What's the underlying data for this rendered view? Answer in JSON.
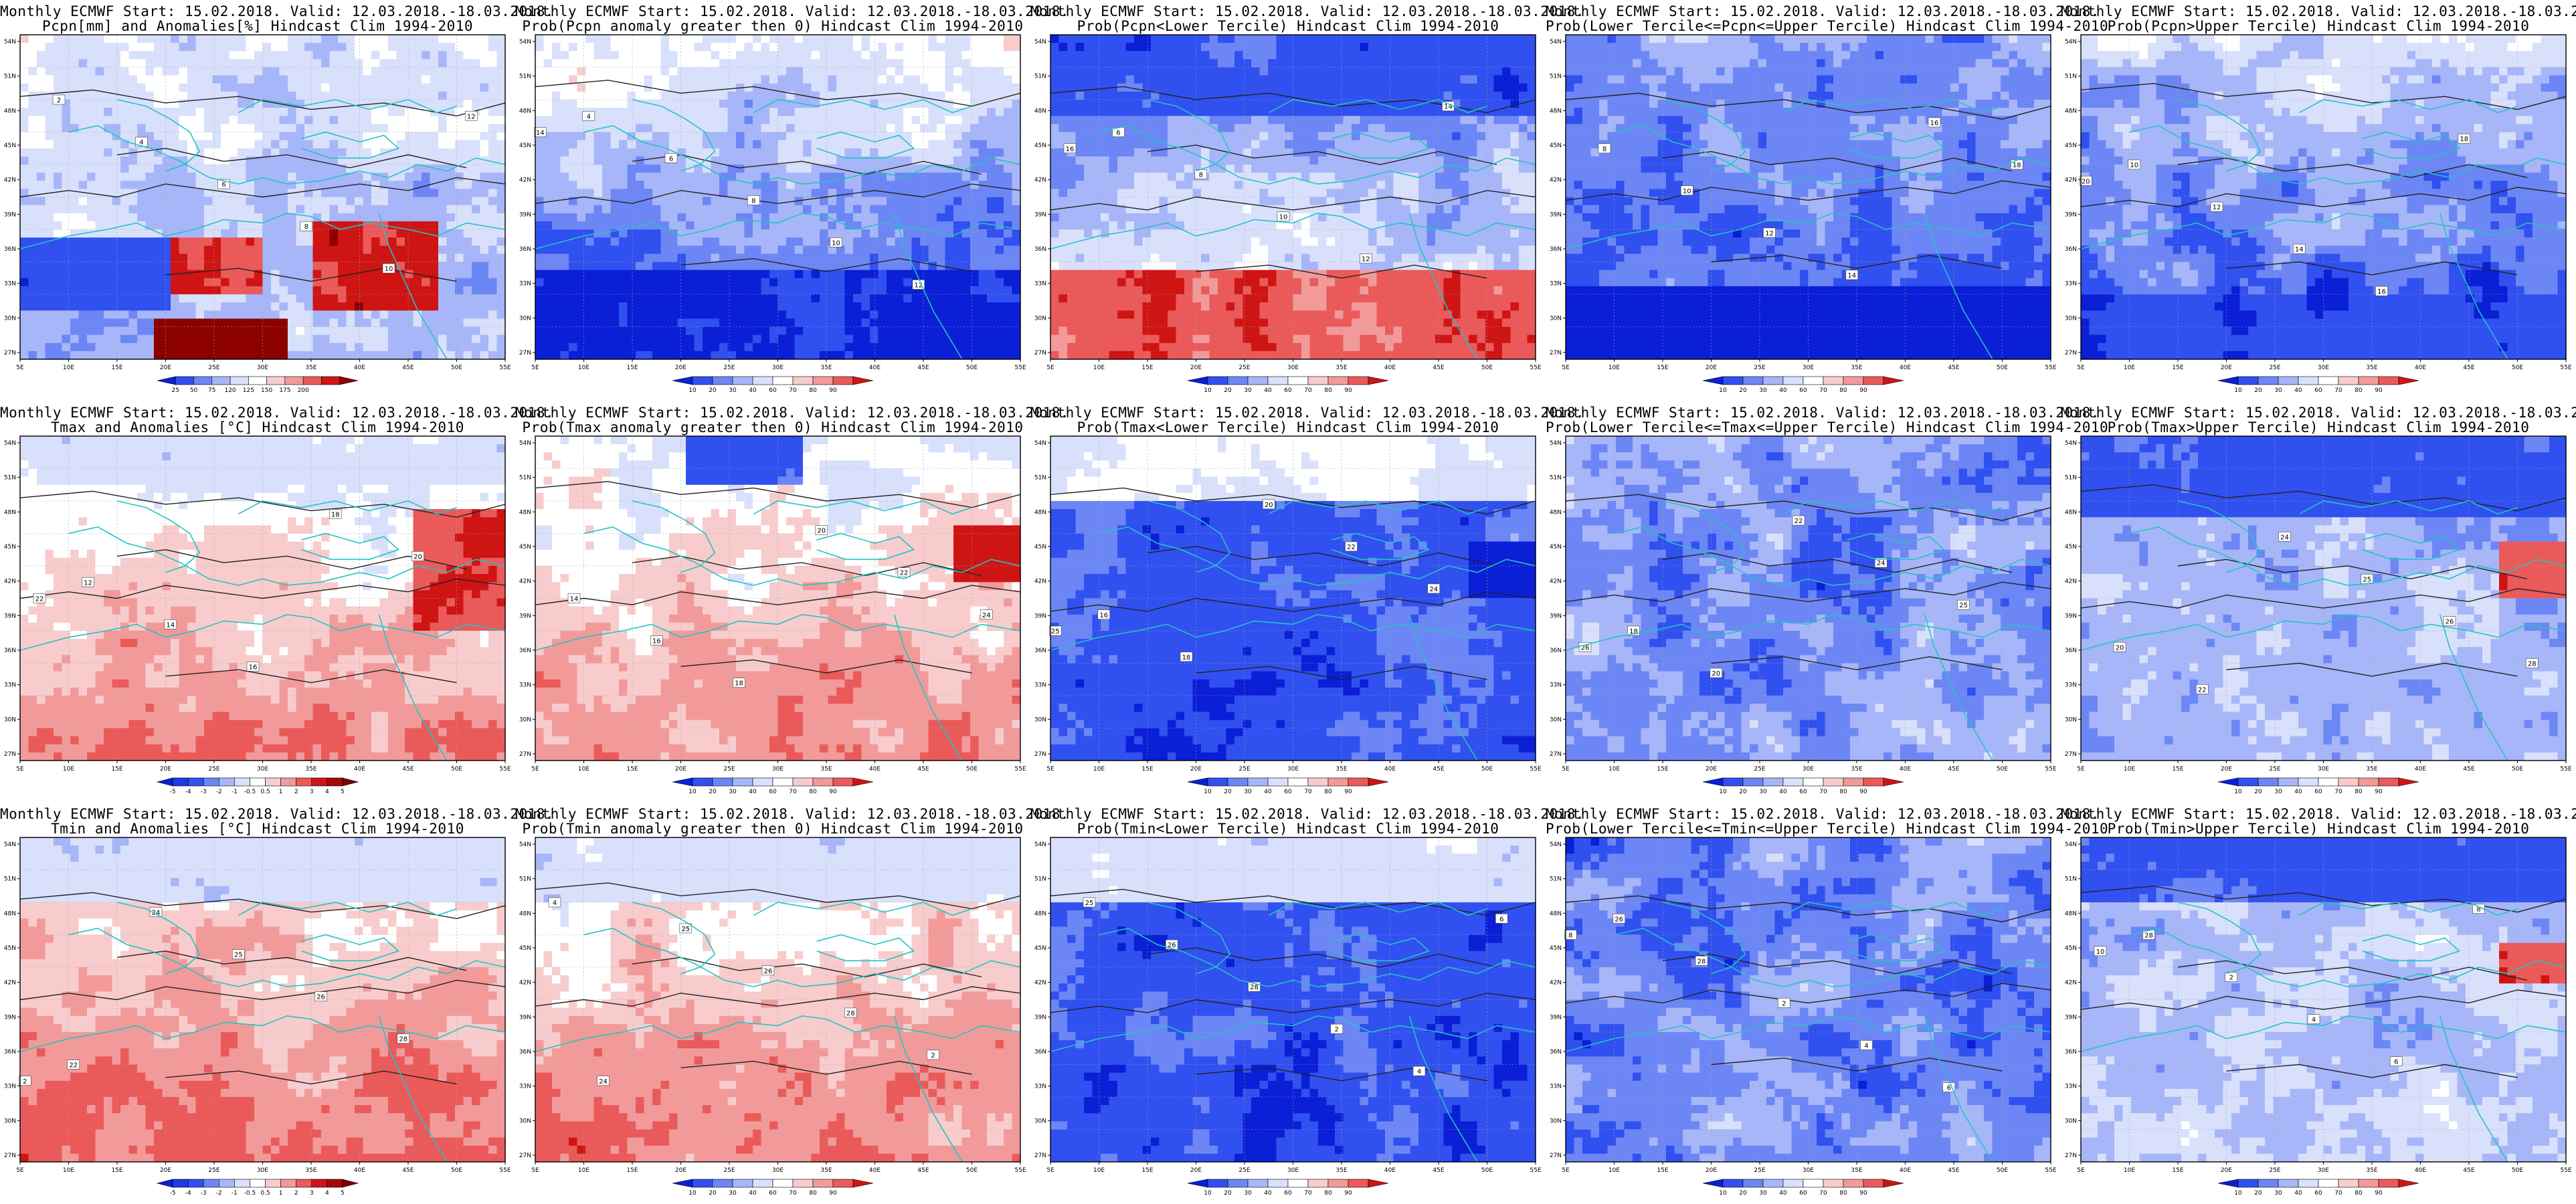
{
  "header_line": "Monthly ECMWF Start: 15.02.2018. Valid: 12.03.2018.-18.03.2018.",
  "lat_labels": [
    "54N",
    "51N",
    "48N",
    "45N",
    "42N",
    "39N",
    "36N",
    "33N",
    "30N",
    "27N"
  ],
  "lon_labels": [
    "5E",
    "10E",
    "15E",
    "20E",
    "25E",
    "30E",
    "35E",
    "40E",
    "45E",
    "50E",
    "55E"
  ],
  "scales": {
    "pcpn_anom": {
      "ticks": [
        "25",
        "50",
        "75",
        "120",
        "125",
        "150",
        "175",
        "200"
      ],
      "colors": [
        "#0a1fd6",
        "#3050f0",
        "#6d86f5",
        "#a7b6f8",
        "#d9e0fb",
        "#ffffff",
        "#f8cccc",
        "#f29a9a",
        "#ea5a5a",
        "#cf1414",
        "#8c0000"
      ]
    },
    "prob": {
      "ticks": [
        "10",
        "20",
        "30",
        "40",
        "60",
        "70",
        "80",
        "90"
      ],
      "colors": [
        "#0a1fd6",
        "#3050f0",
        "#6d86f5",
        "#a7b6f8",
        "#d9e0fb",
        "#ffffff",
        "#f8cccc",
        "#f29a9a",
        "#ea5a5a",
        "#cf1414"
      ]
    },
    "temp_anom": {
      "ticks": [
        "-5",
        "-4",
        "-3",
        "-2",
        "-1",
        "-0.5",
        "0.5",
        "1",
        "2",
        "3",
        "4",
        "5"
      ],
      "colors": [
        "#0a1fd6",
        "#1d3ae4",
        "#3050f0",
        "#6d86f5",
        "#a7b6f8",
        "#d9e0fb",
        "#ffffff",
        "#f8cccc",
        "#f29a9a",
        "#ea5a5a",
        "#cf1414",
        "#a50a0a",
        "#7a0000"
      ]
    }
  },
  "contour_labels": [
    "2",
    "4",
    "6",
    "8",
    "10",
    "12",
    "14",
    "16",
    "18",
    "20",
    "22",
    "24",
    "25",
    "26",
    "28"
  ],
  "panels": [
    {
      "subtitle": "Pcpn[mm] and Anomalies[%] Hindcast Clim 1994-2010",
      "scale": "pcpn_anom",
      "theme": "pcpn"
    },
    {
      "subtitle": "Prob(Pcpn anomaly greater then 0) Hindcast Clim 1994-2010",
      "scale": "prob",
      "theme": "pcpn_prob"
    },
    {
      "subtitle": "Prob(Pcpn<Lower Tercile) Hindcast Clim 1994-2010",
      "scale": "prob",
      "theme": "pcpn_lower"
    },
    {
      "subtitle": "Prob(Lower Tercile<=Pcpn<=Upper Tercile) Hindcast Clim 1994-2010",
      "scale": "prob",
      "theme": "pcpn_mid"
    },
    {
      "subtitle": "Prob(Pcpn>Upper Tercile) Hindcast Clim 1994-2010",
      "scale": "prob",
      "theme": "pcpn_upper"
    },
    {
      "subtitle": "Tmax and Anomalies [°C] Hindcast Clim 1994-2010",
      "scale": "temp_anom",
      "theme": "t_anom"
    },
    {
      "subtitle": "Prob(Tmax anomaly greater then 0) Hindcast Clim 1994-2010",
      "scale": "prob",
      "theme": "t_prob"
    },
    {
      "subtitle": "Prob(Tmax<Lower Tercile) Hindcast Clim 1994-2010",
      "scale": "prob",
      "theme": "t_lower"
    },
    {
      "subtitle": "Prob(Lower Tercile<=Tmax<=Upper Tercile) Hindcast Clim 1994-2010",
      "scale": "prob",
      "theme": "t_mid"
    },
    {
      "subtitle": "Prob(Tmax>Upper Tercile) Hindcast Clim 1994-2010",
      "scale": "prob",
      "theme": "t_upper"
    },
    {
      "subtitle": "Tmin and Anomalies [°C] Hindcast Clim 1994-2010",
      "scale": "temp_anom",
      "theme": "t_anom2"
    },
    {
      "subtitle": "Prob(Tmin anomaly greater then 0) Hindcast Clim 1994-2010",
      "scale": "prob",
      "theme": "t_prob2"
    },
    {
      "subtitle": "Prob(Tmin<Lower Tercile) Hindcast Clim 1994-2010",
      "scale": "prob",
      "theme": "t_lower2"
    },
    {
      "subtitle": "Prob(Lower Tercile<=Tmin<=Upper Tercile) Hindcast Clim 1994-2010",
      "scale": "prob",
      "theme": "t_mid2"
    },
    {
      "subtitle": "Prob(Tmin>Upper Tercile) Hindcast Clim 1994-2010",
      "scale": "prob",
      "theme": "t_upper2"
    }
  ]
}
